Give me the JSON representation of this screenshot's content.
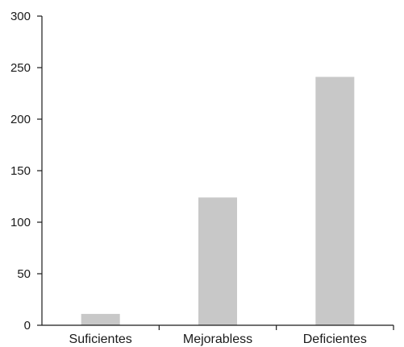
{
  "chart_data": {
    "type": "bar",
    "categories": [
      "Suficientes",
      "Mejorabless",
      "Deficientes"
    ],
    "values": [
      11,
      124,
      241
    ],
    "ylim": [
      0,
      300
    ],
    "yticks": [
      0,
      50,
      100,
      150,
      200,
      250,
      300
    ],
    "grid": false,
    "bar_color": "#c8c8c8",
    "axis_color": "#1a1a1a"
  }
}
